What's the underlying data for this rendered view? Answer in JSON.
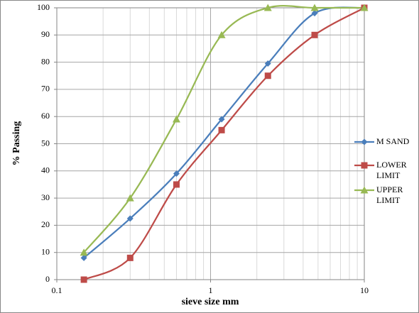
{
  "chart_data": {
    "type": "line",
    "x_label": "sieve size mm",
    "y_label": "% Passing",
    "x": [
      0.15,
      0.3,
      0.6,
      1.18,
      2.36,
      4.75,
      10
    ],
    "series": [
      {
        "name": "M SAND",
        "color": "#4a7ebb",
        "marker": "diamond",
        "values": [
          8,
          22.5,
          39,
          59,
          79.5,
          98,
          100
        ]
      },
      {
        "name": "LOWER LIMIT",
        "color": "#be4b48",
        "marker": "square",
        "values": [
          0,
          8,
          35,
          55,
          75,
          90,
          100
        ]
      },
      {
        "name": "UPPER LIMIT",
        "color": "#98b954",
        "marker": "triangle",
        "values": [
          10,
          30,
          59,
          90,
          100,
          100,
          100
        ]
      }
    ],
    "xlim": [
      0.1,
      10
    ],
    "ylim": [
      0,
      100
    ],
    "xticks": [
      0.1,
      1,
      10
    ],
    "yticks": [
      0,
      10,
      20,
      30,
      40,
      50,
      60,
      70,
      80,
      90,
      100
    ],
    "log_x": true,
    "grid": true,
    "legend": "right"
  }
}
